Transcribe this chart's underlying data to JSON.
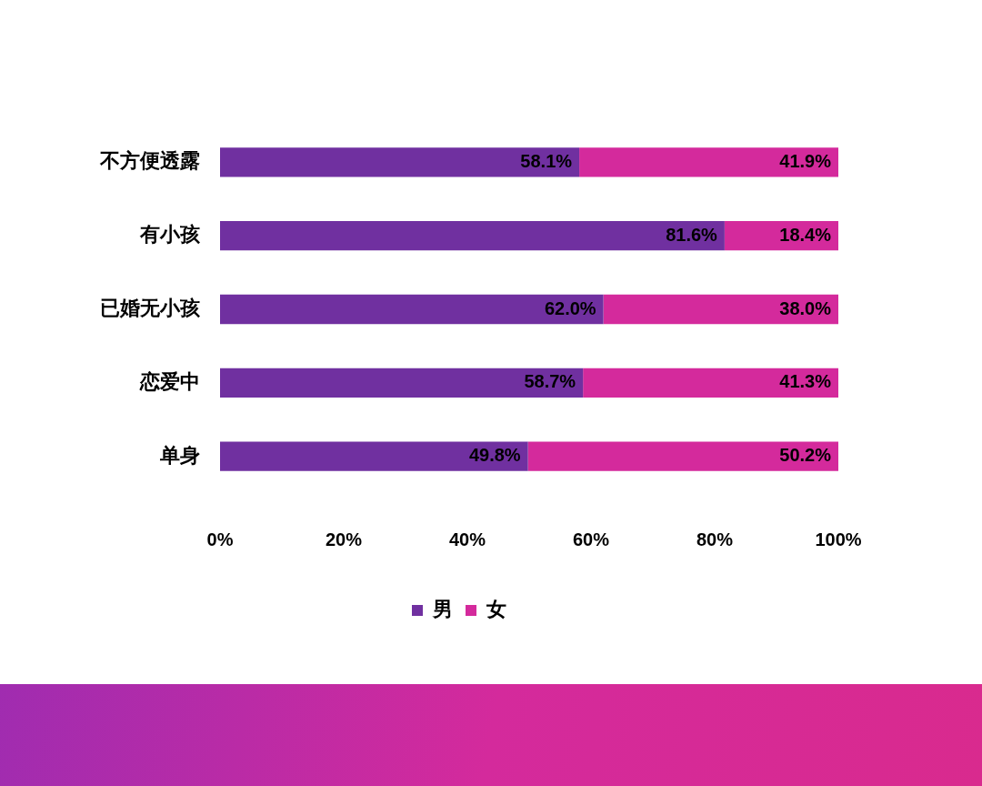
{
  "chart_data": {
    "type": "bar",
    "orientation": "horizontal",
    "stacked": true,
    "categories": [
      "不方便透露",
      "有小孩",
      "已婚无小孩",
      "恋爱中",
      "单身"
    ],
    "series": [
      {
        "name": "男",
        "color": "#7030a0",
        "values": [
          58.1,
          81.6,
          62.0,
          58.7,
          49.8
        ],
        "value_labels": [
          "58.1%",
          "81.6%",
          "62.0%",
          "58.7%",
          "49.8%"
        ]
      },
      {
        "name": "女",
        "color": "#d42a9c",
        "values": [
          41.9,
          18.4,
          38.0,
          41.3,
          50.2
        ],
        "value_labels": [
          "41.9%",
          "18.4%",
          "38.0%",
          "41.3%",
          "50.2%"
        ]
      }
    ],
    "xlim": [
      0,
      100
    ],
    "xticks": [
      {
        "value": 0,
        "label": "0%"
      },
      {
        "value": 20,
        "label": "20%"
      },
      {
        "value": 40,
        "label": "40%"
      },
      {
        "value": 60,
        "label": "60%"
      },
      {
        "value": 80,
        "label": "80%"
      },
      {
        "value": 100,
        "label": "100%"
      }
    ],
    "grid": false,
    "legend": "bottom"
  }
}
